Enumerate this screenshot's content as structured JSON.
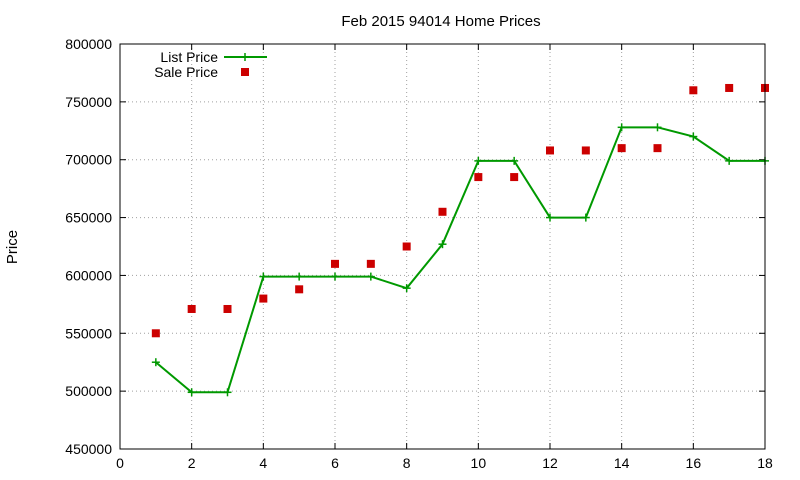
{
  "chart_data": {
    "type": "line",
    "title": "Feb 2015 94014 Home Prices",
    "xlabel": "",
    "ylabel": "Price",
    "xlim": [
      0,
      18
    ],
    "ylim": [
      450000,
      800000
    ],
    "x_ticks": [
      "0",
      "2",
      "4",
      "6",
      "8",
      "10",
      "12",
      "14",
      "16",
      "18"
    ],
    "y_ticks": [
      "450000",
      "500000",
      "550000",
      "600000",
      "650000",
      "700000",
      "750000",
      "800000"
    ],
    "grid": true,
    "legend_position": "top-left",
    "series": [
      {
        "name": "List Price",
        "style": "line-with-plus-markers",
        "color": "#009900",
        "x": [
          1,
          2,
          3,
          4,
          5,
          6,
          7,
          8,
          9,
          10,
          11,
          12,
          13,
          14,
          15,
          16,
          17,
          18
        ],
        "y": [
          525000,
          499000,
          499000,
          599000,
          599000,
          599000,
          599000,
          589000,
          627000,
          699000,
          699000,
          650000,
          650000,
          728000,
          728000,
          720000,
          699000,
          699000
        ]
      },
      {
        "name": "Sale Price",
        "style": "square-markers",
        "color": "#cc0000",
        "x": [
          1,
          2,
          3,
          4,
          5,
          6,
          7,
          8,
          9,
          10,
          11,
          12,
          13,
          14,
          15,
          16,
          17,
          18
        ],
        "y": [
          550000,
          571000,
          571000,
          580000,
          588000,
          610000,
          610000,
          625000,
          655000,
          685000,
          685000,
          708000,
          708000,
          710000,
          710000,
          760000,
          762000,
          762000
        ]
      }
    ]
  }
}
